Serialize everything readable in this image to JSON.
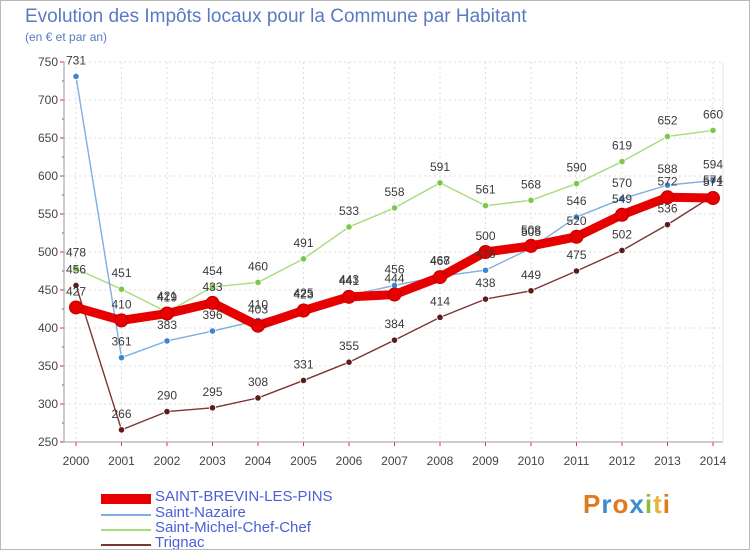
{
  "header": {
    "title": "Evolution des Impôts locaux pour la Commune par Habitant",
    "subtitle": "(en € et par an)"
  },
  "logo": {
    "text": "Proxiti",
    "colors": [
      "#e07a1f",
      "#3a8ed0",
      "#e07a1f",
      "#3a8ed0",
      "#8bbf3b",
      "#e8b53a",
      "#e07a1f"
    ]
  },
  "chart_data": {
    "type": "line",
    "x": [
      "2000",
      "2001",
      "2002",
      "2003",
      "2004",
      "2005",
      "2006",
      "2007",
      "2008",
      "2009",
      "2010",
      "2011",
      "2012",
      "2013",
      "2014"
    ],
    "ylim": [
      250,
      750
    ],
    "yticks": [
      250,
      300,
      350,
      400,
      450,
      500,
      550,
      600,
      650,
      700,
      750
    ],
    "grid": true,
    "legend_position": "bottom-left",
    "series": [
      {
        "name": "SAINT-BREVIN-LES-PINS",
        "color": "#e60000",
        "marker": "#e60000",
        "values": [
          427,
          410,
          419,
          433,
          403,
          423,
          441,
          444,
          467,
          500,
          508,
          520,
          549,
          572,
          571
        ]
      },
      {
        "name": "Saint-Nazaire",
        "color": "#7faee0",
        "marker": "#3a86cf",
        "values": [
          731,
          361,
          383,
          396,
          410,
          425,
          443,
          456,
          468,
          476,
          505,
          546,
          570,
          588,
          594
        ]
      },
      {
        "name": "Saint-Michel-Chef-Chef",
        "color": "#a5dc7c",
        "marker": "#7bc948",
        "values": [
          478,
          451,
          421,
          454,
          460,
          491,
          533,
          558,
          591,
          561,
          568,
          590,
          619,
          652,
          660
        ]
      },
      {
        "name": "Trignac",
        "color": "#7c3434",
        "marker": "#5c1c1c",
        "values": [
          456,
          266,
          290,
          295,
          308,
          331,
          355,
          384,
          414,
          438,
          449,
          475,
          502,
          536,
          574
        ]
      }
    ]
  }
}
